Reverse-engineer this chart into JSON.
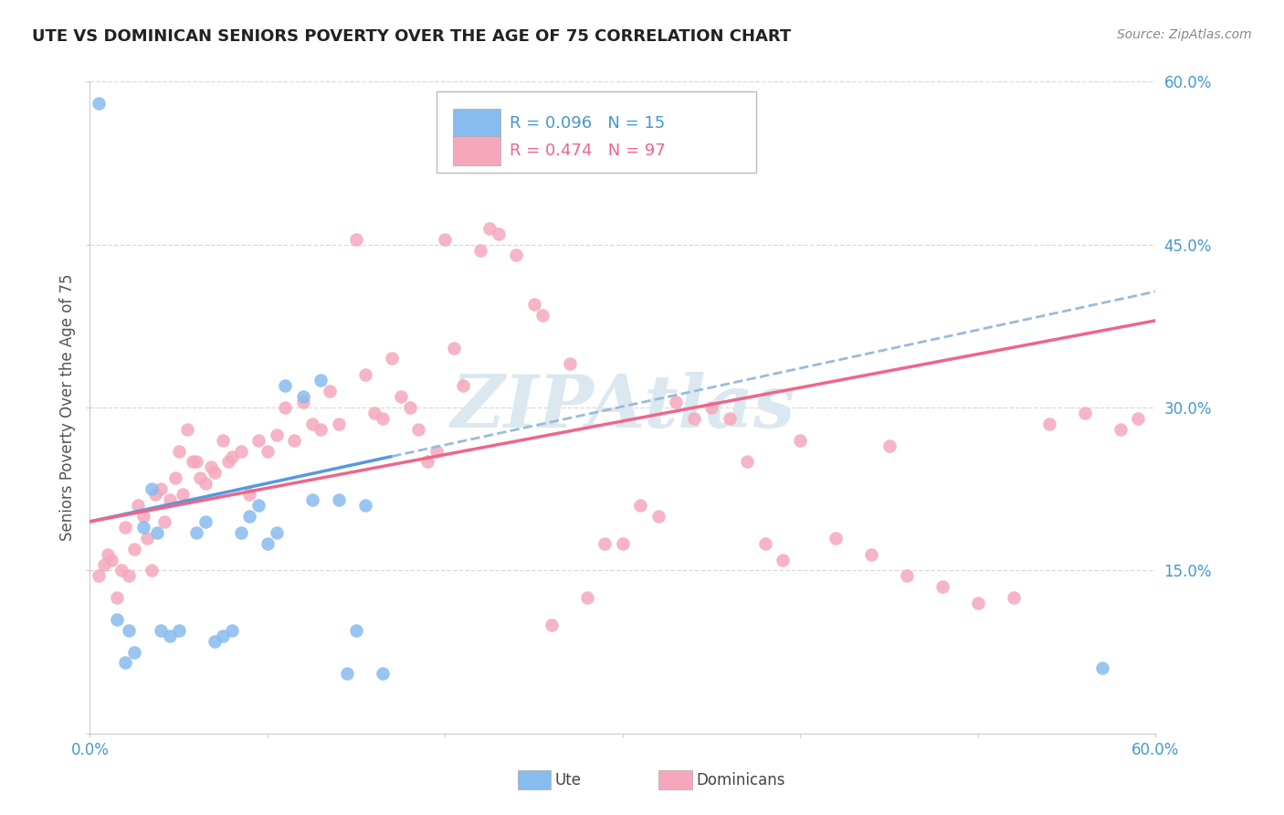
{
  "title": "UTE VS DOMINICAN SENIORS POVERTY OVER THE AGE OF 75 CORRELATION CHART",
  "source": "Source: ZipAtlas.com",
  "ylabel": "Seniors Poverty Over the Age of 75",
  "xlim": [
    0.0,
    0.6
  ],
  "ylim": [
    0.0,
    0.6
  ],
  "xticks": [
    0.0,
    0.1,
    0.2,
    0.3,
    0.4,
    0.5,
    0.6
  ],
  "yticks": [
    0.0,
    0.15,
    0.3,
    0.45,
    0.6
  ],
  "background_color": "#ffffff",
  "grid_color": "#d0d0d0",
  "ute_color": "#88bbee",
  "dom_color": "#f5a8bc",
  "ute_line_color": "#5599dd",
  "dom_line_color": "#ee6688",
  "ute_line_dash_color": "#99bbdd",
  "watermark_color": "#dce8f0",
  "ute_scatter_x": [
    0.005,
    0.015,
    0.02,
    0.022,
    0.025,
    0.03,
    0.035,
    0.038,
    0.04,
    0.045,
    0.05,
    0.06,
    0.065,
    0.07,
    0.075,
    0.08,
    0.085,
    0.09,
    0.095,
    0.1,
    0.105,
    0.11,
    0.12,
    0.125,
    0.13,
    0.14,
    0.145,
    0.15,
    0.155,
    0.165,
    0.57
  ],
  "ute_scatter_y": [
    0.58,
    0.105,
    0.065,
    0.095,
    0.075,
    0.19,
    0.225,
    0.185,
    0.095,
    0.09,
    0.095,
    0.185,
    0.195,
    0.085,
    0.09,
    0.095,
    0.185,
    0.2,
    0.21,
    0.175,
    0.185,
    0.32,
    0.31,
    0.215,
    0.325,
    0.215,
    0.055,
    0.095,
    0.21,
    0.055,
    0.06
  ],
  "dom_scatter_x": [
    0.005,
    0.008,
    0.01,
    0.012,
    0.015,
    0.018,
    0.02,
    0.022,
    0.025,
    0.027,
    0.03,
    0.032,
    0.035,
    0.037,
    0.04,
    0.042,
    0.045,
    0.048,
    0.05,
    0.052,
    0.055,
    0.058,
    0.06,
    0.062,
    0.065,
    0.068,
    0.07,
    0.075,
    0.078,
    0.08,
    0.085,
    0.09,
    0.095,
    0.1,
    0.105,
    0.11,
    0.115,
    0.12,
    0.125,
    0.13,
    0.135,
    0.14,
    0.15,
    0.155,
    0.16,
    0.165,
    0.17,
    0.175,
    0.18,
    0.185,
    0.19,
    0.195,
    0.2,
    0.205,
    0.21,
    0.22,
    0.225,
    0.23,
    0.24,
    0.25,
    0.255,
    0.26,
    0.27,
    0.28,
    0.29,
    0.3,
    0.31,
    0.32,
    0.33,
    0.34,
    0.35,
    0.36,
    0.37,
    0.38,
    0.39,
    0.4,
    0.42,
    0.44,
    0.45,
    0.46,
    0.48,
    0.5,
    0.52,
    0.54,
    0.56,
    0.58,
    0.59
  ],
  "dom_scatter_y": [
    0.145,
    0.155,
    0.165,
    0.16,
    0.125,
    0.15,
    0.19,
    0.145,
    0.17,
    0.21,
    0.2,
    0.18,
    0.15,
    0.22,
    0.225,
    0.195,
    0.215,
    0.235,
    0.26,
    0.22,
    0.28,
    0.25,
    0.25,
    0.235,
    0.23,
    0.245,
    0.24,
    0.27,
    0.25,
    0.255,
    0.26,
    0.22,
    0.27,
    0.26,
    0.275,
    0.3,
    0.27,
    0.305,
    0.285,
    0.28,
    0.315,
    0.285,
    0.455,
    0.33,
    0.295,
    0.29,
    0.345,
    0.31,
    0.3,
    0.28,
    0.25,
    0.26,
    0.455,
    0.355,
    0.32,
    0.445,
    0.465,
    0.46,
    0.44,
    0.395,
    0.385,
    0.1,
    0.34,
    0.125,
    0.175,
    0.175,
    0.21,
    0.2,
    0.305,
    0.29,
    0.3,
    0.29,
    0.25,
    0.175,
    0.16,
    0.27,
    0.18,
    0.165,
    0.265,
    0.145,
    0.135,
    0.12,
    0.125,
    0.285,
    0.295,
    0.28,
    0.29
  ],
  "ute_line_x0": 0.0,
  "ute_line_x1": 0.17,
  "ute_line_dash_x0": 0.17,
  "ute_line_dash_x1": 0.6,
  "ute_line_y0": 0.195,
  "ute_line_y1": 0.255,
  "dom_line_x0": 0.0,
  "dom_line_x1": 0.6,
  "dom_line_y0": 0.195,
  "dom_line_y1": 0.38
}
